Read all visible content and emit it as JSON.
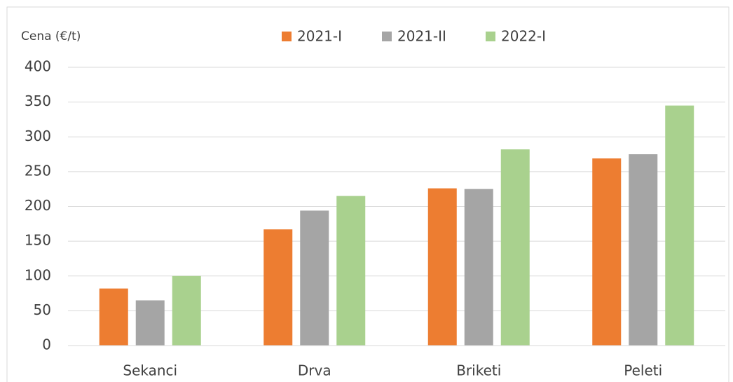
{
  "chart_data": {
    "type": "bar",
    "y_label": "Cena (€/t)",
    "categories": [
      "Sekanci",
      "Drva",
      "Briketi",
      "Peleti"
    ],
    "series": [
      {
        "name": "2021-I",
        "color": "#ed7d31",
        "values": [
          82,
          167,
          226,
          269
        ]
      },
      {
        "name": "2021-II",
        "color": "#a5a5a5",
        "values": [
          65,
          194,
          225,
          275
        ]
      },
      {
        "name": "2022-I",
        "color": "#a9d18e",
        "values": [
          100,
          215,
          282,
          345
        ]
      }
    ],
    "ylim": [
      0,
      400
    ],
    "yticks": [
      0,
      50,
      100,
      150,
      200,
      250,
      300,
      350,
      400
    ],
    "grid": true,
    "legend": "top"
  }
}
